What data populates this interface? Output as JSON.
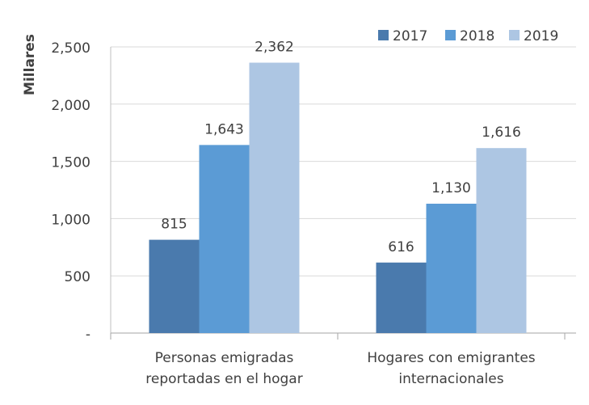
{
  "chart_data": {
    "type": "bar",
    "ylabel": "Millares",
    "xlabel": "",
    "categories": [
      [
        "Personas emigradas",
        "reportadas en el hogar"
      ],
      [
        "Hogares con emigrantes",
        "internacionales"
      ]
    ],
    "series": [
      {
        "name": "2017",
        "values": [
          815,
          616
        ],
        "color": "#4a7aad"
      },
      {
        "name": "2018",
        "values": [
          1643,
          1130
        ],
        "color": "#5b9bd5"
      },
      {
        "name": "2019",
        "values": [
          2362,
          1616
        ],
        "color": "#adc6e3"
      }
    ],
    "data_labels": [
      [
        "815",
        "616"
      ],
      [
        "1,643",
        "1,130"
      ],
      [
        "2,362",
        "1,616"
      ]
    ],
    "ylim": [
      0,
      2500
    ],
    "yticks": [
      0,
      500,
      1000,
      1500,
      2000,
      2500
    ],
    "ytick_labels": [
      "-",
      "500",
      "1,000",
      "1,500",
      "2,000",
      "2,500"
    ],
    "grid": true,
    "legend": "top-right"
  }
}
